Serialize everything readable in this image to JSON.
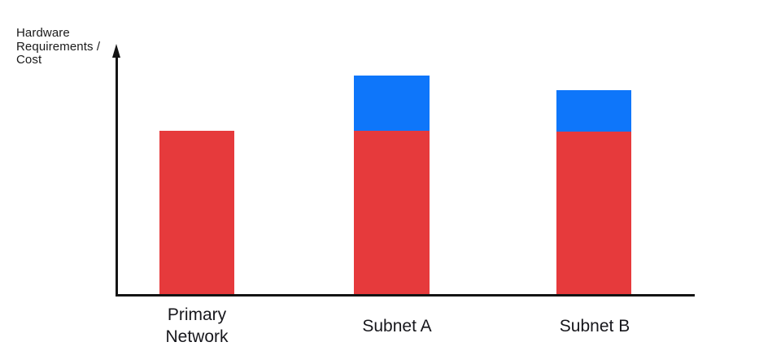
{
  "colors": {
    "red": "#E63A3C",
    "blue": "#0E76FA",
    "axis": "#141414",
    "text": "#1A1A1A"
  },
  "y_axis": {
    "label_lines": [
      "Hardware",
      "Requirements /",
      "Cost"
    ]
  },
  "chart_data": {
    "type": "bar",
    "stacked": true,
    "orientation": "vertical",
    "title": "",
    "xlabel": "",
    "ylabel": "Hardware Requirements / Cost",
    "categories": [
      "Primary Network",
      "Subnet A",
      "Subnet B"
    ],
    "series": [
      {
        "name": "red",
        "color": "#E63A3C",
        "values": [
          201,
          201,
          200
        ]
      },
      {
        "name": "blue",
        "color": "#0E76FA",
        "values": [
          0,
          68,
          51
        ]
      }
    ],
    "value_units": "relative units (y-axis has no numeric scale); estimated from rendered heights, 1 unit = 1 px",
    "ylim": [
      0,
      310
    ],
    "grid": false,
    "legend": "none",
    "notes": "Red base segment is equal height for all three bars; Subnet A and Subnet B carry an additional blue segment on top."
  }
}
